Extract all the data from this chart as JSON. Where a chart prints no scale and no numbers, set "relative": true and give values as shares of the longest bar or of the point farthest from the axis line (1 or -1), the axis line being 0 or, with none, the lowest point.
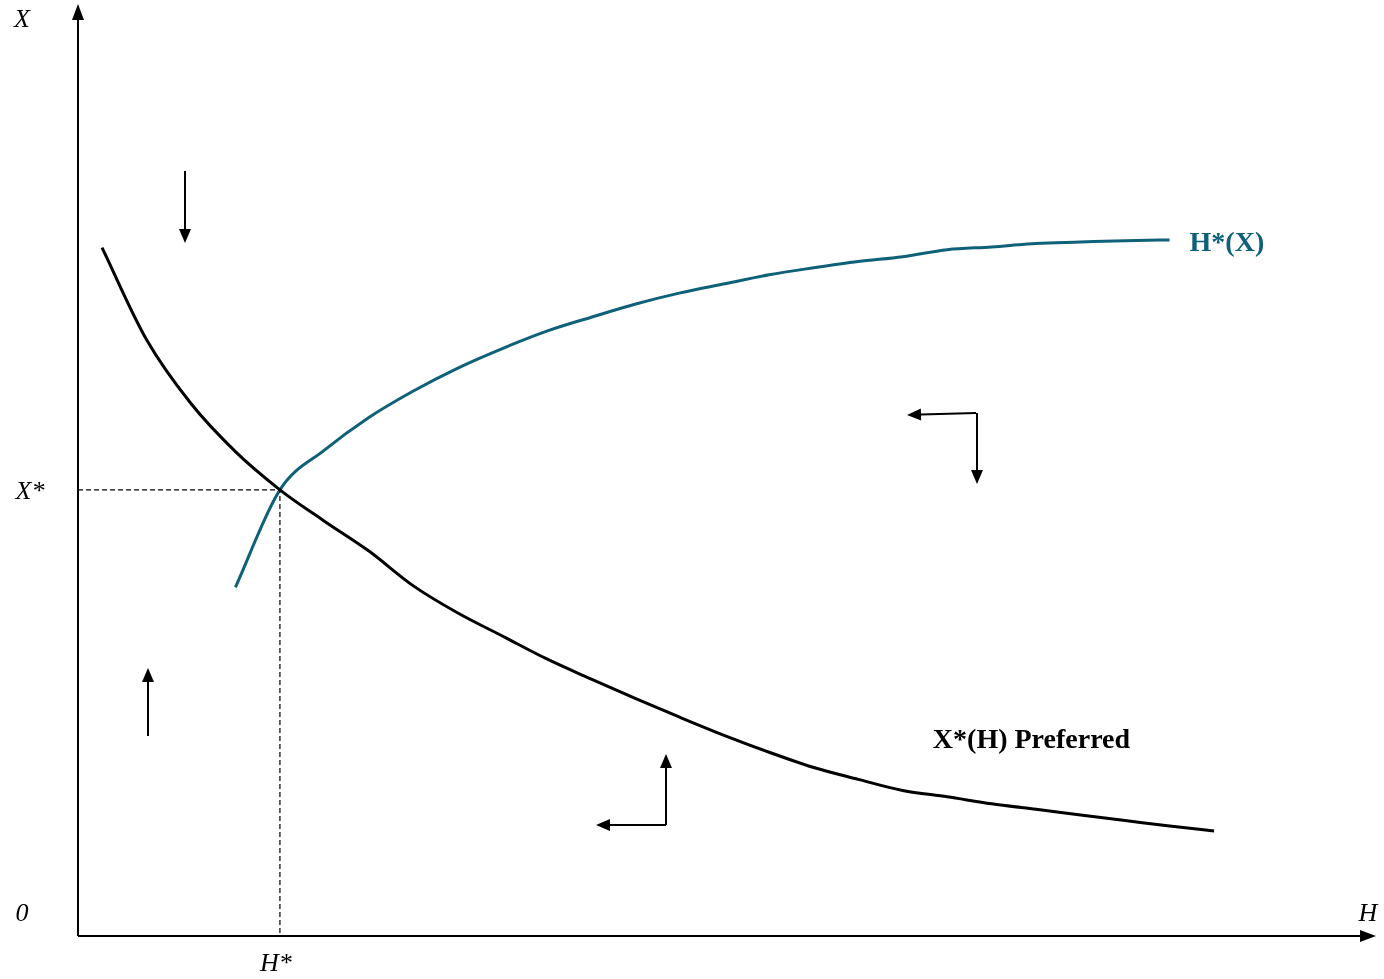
{
  "chart_data": {
    "type": "line",
    "relative": true,
    "xlabel": "H",
    "legend": false,
    "marker": "none",
    "categories": [
      null,
      null,
      null,
      null,
      null,
      null,
      null,
      null,
      null,
      null,
      null,
      null,
      null,
      null,
      null,
      null,
      null,
      null,
      null,
      null,
      null,
      null,
      null,
      null,
      null,
      null
    ],
    "series": [
      {
        "name": "X*(H) Preferred",
        "color": "#000000",
        "values": [
          0.989,
          0.857,
          0.765,
          0.696,
          0.641,
          0.596,
          0.553,
          0.503,
          0.464,
          0.431,
          0.398,
          0.369,
          0.341,
          0.314,
          0.288,
          0.264,
          0.242,
          0.225,
          0.209,
          0.2,
          0.19,
          0.182,
          0.174,
          0.166,
          0.158,
          0.151
        ]
      },
      {
        "name": "H*(X)",
        "color": "#0e6179",
        "values": [
          null,
          null,
          null,
          0.501,
          0.641,
          0.698,
          0.745,
          0.783,
          0.816,
          0.844,
          0.869,
          0.889,
          0.908,
          0.924,
          0.937,
          0.95,
          0.96,
          0.969,
          0.976,
          0.986,
          0.99,
          0.995,
          0.997,
          0.999,
          1.0,
          null
        ]
      }
    ],
    "ref_lines": [
      {
        "axis": "y",
        "value": 0.641,
        "label": "X*",
        "line_style": "dashed"
      }
    ],
    "annotations": [
      "0",
      "H*",
      "X"
    ]
  }
}
